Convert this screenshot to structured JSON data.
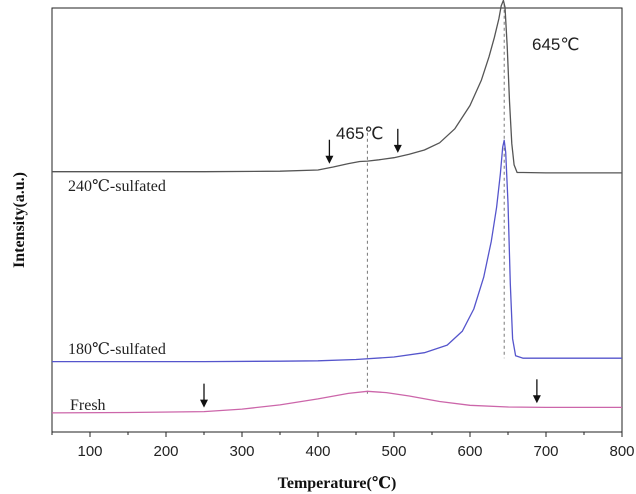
{
  "chart_data": {
    "type": "line",
    "xlabel": "Temperature(℃)",
    "ylabel": "Intensity(a.u.)",
    "xlim": [
      50,
      800
    ],
    "ylim": [
      0,
      100
    ],
    "xticks": [
      100,
      200,
      300,
      400,
      500,
      600,
      700,
      800
    ],
    "yticks_shown": false,
    "series": [
      {
        "name": "240℃-sulfated",
        "color": "#555555",
        "points": [
          [
            50,
            61.4
          ],
          [
            150,
            61.4
          ],
          [
            250,
            61.4
          ],
          [
            350,
            61.5
          ],
          [
            400,
            61.8
          ],
          [
            420,
            62.5
          ],
          [
            440,
            63.3
          ],
          [
            455,
            63.8
          ],
          [
            465,
            63.9
          ],
          [
            480,
            64.2
          ],
          [
            500,
            64.7
          ],
          [
            520,
            65.5
          ],
          [
            540,
            66.5
          ],
          [
            560,
            68.2
          ],
          [
            580,
            71.5
          ],
          [
            600,
            77
          ],
          [
            615,
            83
          ],
          [
            625,
            88.5
          ],
          [
            632,
            93
          ],
          [
            638,
            97.5
          ],
          [
            641,
            100.5
          ],
          [
            644,
            101.8
          ],
          [
            646,
            100.2
          ],
          [
            649,
            91
          ],
          [
            652,
            78
          ],
          [
            655,
            68
          ],
          [
            658,
            63
          ],
          [
            662,
            61.2
          ],
          [
            670,
            61.2
          ],
          [
            700,
            61.1
          ],
          [
            750,
            61.1
          ],
          [
            800,
            61.1
          ]
        ]
      },
      {
        "name": "180℃-sulfated",
        "color": "#5555cc",
        "points": [
          [
            50,
            16.6
          ],
          [
            150,
            16.6
          ],
          [
            250,
            16.6
          ],
          [
            350,
            16.7
          ],
          [
            400,
            16.8
          ],
          [
            450,
            17.1
          ],
          [
            500,
            17.7
          ],
          [
            540,
            18.7
          ],
          [
            570,
            20.5
          ],
          [
            590,
            23.8
          ],
          [
            605,
            29
          ],
          [
            618,
            36.5
          ],
          [
            628,
            45
          ],
          [
            635,
            53
          ],
          [
            640,
            61
          ],
          [
            643,
            67.2
          ],
          [
            645,
            68.8
          ],
          [
            647,
            66
          ],
          [
            650,
            54
          ],
          [
            653,
            35
          ],
          [
            656,
            22
          ],
          [
            660,
            18
          ],
          [
            670,
            17.4
          ],
          [
            700,
            17.4
          ],
          [
            750,
            17.4
          ],
          [
            800,
            17.4
          ]
        ]
      },
      {
        "name": "Fresh",
        "color": "#cc66aa",
        "points": [
          [
            50,
            4.5
          ],
          [
            150,
            4.6
          ],
          [
            250,
            4.8
          ],
          [
            300,
            5.4
          ],
          [
            350,
            6.4
          ],
          [
            400,
            7.8
          ],
          [
            440,
            9.1
          ],
          [
            465,
            9.6
          ],
          [
            490,
            9.3
          ],
          [
            520,
            8.5
          ],
          [
            560,
            7.2
          ],
          [
            600,
            6.3
          ],
          [
            650,
            5.9
          ],
          [
            700,
            5.8
          ],
          [
            750,
            5.8
          ],
          [
            800,
            5.8
          ]
        ]
      }
    ],
    "annotations": [
      {
        "text": "645℃",
        "x": 645
      },
      {
        "text": "465℃",
        "x": 465
      }
    ],
    "reference_lines": [
      {
        "x": 465,
        "style": "dashed"
      },
      {
        "x": 645,
        "style": "dashed"
      }
    ],
    "arrows": [
      {
        "series": "240℃-sulfated",
        "x": 415
      },
      {
        "series": "240℃-sulfated",
        "x": 505
      },
      {
        "series": "Fresh",
        "x": 250
      },
      {
        "series": "Fresh",
        "x": 688
      }
    ],
    "grid": false,
    "legend": "inline-labels"
  }
}
